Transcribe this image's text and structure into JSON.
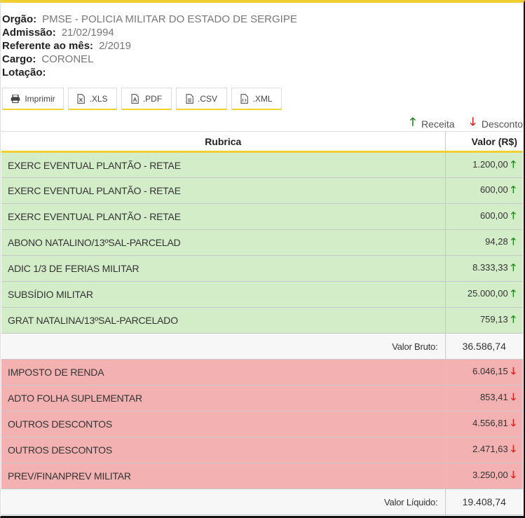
{
  "info": {
    "orgao_label": "Orgão:",
    "orgao": "PMSE - POLICIA MILITAR DO ESTADO DE SERGIPE",
    "admissao_label": "Admissão:",
    "admissao": "21/02/1994",
    "referente_label": "Referente ao mês:",
    "referente": "2/2019",
    "cargo_label": "Cargo:",
    "cargo": "CORONEL",
    "lotacao_label": "Lotação:",
    "lotacao": ""
  },
  "toolbar": {
    "print": "Imprimir",
    "xls": ".XLS",
    "pdf": ".PDF",
    "csv": ".CSV",
    "xml": ".XML"
  },
  "legend": {
    "receita": "Receita",
    "desconto": "Desconto"
  },
  "table": {
    "col_rubrica": "Rubrica",
    "col_valor": "Valor (R$)",
    "receitas": [
      {
        "name": "EXERC EVENTUAL PLANTÃO - RETAE",
        "value": "1.200,00"
      },
      {
        "name": "EXERC EVENTUAL PLANTÃO - RETAE",
        "value": "600,00"
      },
      {
        "name": "EXERC EVENTUAL PLANTÃO - RETAE",
        "value": "600,00"
      },
      {
        "name": "ABONO NATALINO/13ºSAL-PARCELAD",
        "value": "94,28"
      },
      {
        "name": "ADIC 1/3 DE FERIAS MILITAR",
        "value": "8.333,33"
      },
      {
        "name": "SUBSÍDIO MILITAR",
        "value": "25.000,00"
      },
      {
        "name": "GRAT NATALINA/13ºSAL-PARCELADO",
        "value": "759,13"
      }
    ],
    "bruto_label": "Valor Bruto:",
    "bruto": "36.586,74",
    "descontos": [
      {
        "name": "IMPOSTO DE RENDA",
        "value": "6.046,15"
      },
      {
        "name": "ADTO FOLHA SUPLEMENTAR",
        "value": "853,41"
      },
      {
        "name": "OUTROS DESCONTOS",
        "value": "4.556,81"
      },
      {
        "name": "OUTROS DESCONTOS",
        "value": "2.471,63"
      },
      {
        "name": "PREV/FINANPREV MILITAR",
        "value": "3.250,00"
      }
    ],
    "liquido_label": "Valor Líquido:",
    "liquido": "19.408,74"
  },
  "colors": {
    "accent": "#f0d030",
    "receita_bg": "#d4edc9",
    "desconto_bg": "#f3b1b1",
    "up_arrow": "#1e8a1e",
    "down_arrow": "#e02020"
  }
}
